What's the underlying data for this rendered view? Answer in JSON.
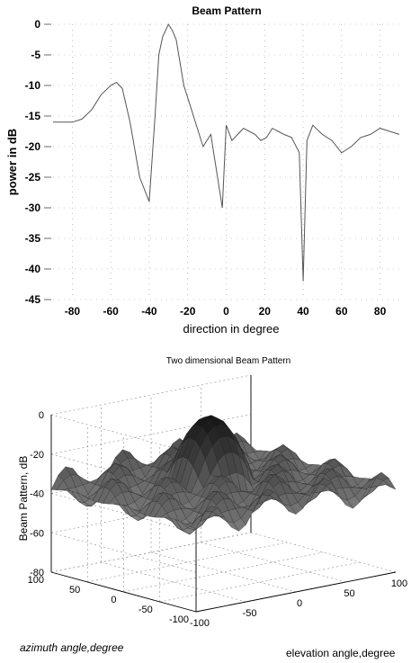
{
  "chart_data": [
    {
      "type": "line",
      "title": "Beam Pattern",
      "xlabel": "direction in degree",
      "ylabel": "power in dB",
      "xlim": [
        -90,
        90
      ],
      "ylim": [
        -45,
        0
      ],
      "xticks": [
        -80,
        -60,
        -40,
        -20,
        0,
        20,
        40,
        60,
        80
      ],
      "yticks": [
        0,
        -5,
        -10,
        -15,
        -20,
        -25,
        -30,
        -35,
        -40,
        -45
      ],
      "grid": true,
      "series": [
        {
          "x": [
            -90,
            -80,
            -75,
            -70,
            -65,
            -60,
            -57,
            -54,
            -50,
            -45,
            -40,
            -37,
            -35,
            -33,
            -30,
            -28,
            -26,
            -22,
            -18,
            -12,
            -8,
            -5,
            -2,
            0,
            3,
            6,
            9,
            12,
            15,
            18,
            21,
            24,
            27,
            30,
            34,
            38,
            40,
            42,
            45,
            50,
            55,
            60,
            65,
            70,
            75,
            80,
            85,
            90
          ],
          "y": [
            -16,
            -16,
            -15.5,
            -14,
            -11.5,
            -10,
            -9.5,
            -10.5,
            -16,
            -25,
            -29,
            -15,
            -5,
            -2,
            0,
            -1,
            -2.5,
            -10,
            -14,
            -20,
            -18,
            -24,
            -30,
            -16.5,
            -19,
            -18,
            -17,
            -17.5,
            -18,
            -19,
            -18.5,
            -17,
            -17.5,
            -18,
            -18.5,
            -21,
            -42,
            -19,
            -16.5,
            -18,
            -19,
            -21,
            -20,
            -18.5,
            -18,
            -17,
            -17.5,
            -18
          ]
        }
      ]
    },
    {
      "type": "surface",
      "title": "Two dimensional Beam Pattern",
      "xlabel": "elevation angle,degree",
      "ylabel": "azimuth angle,degree",
      "zlabel": "Beam Pattern, dB",
      "xlim": [
        -100,
        100
      ],
      "ylim": [
        -100,
        100
      ],
      "zlim": [
        -80,
        0
      ],
      "xticks": [
        -100,
        -50,
        0,
        50,
        100
      ],
      "yticks": [
        -100,
        -50,
        0,
        50,
        100
      ],
      "zticks": [
        0,
        -20,
        -40,
        -60,
        -80
      ],
      "grid": true
    }
  ]
}
